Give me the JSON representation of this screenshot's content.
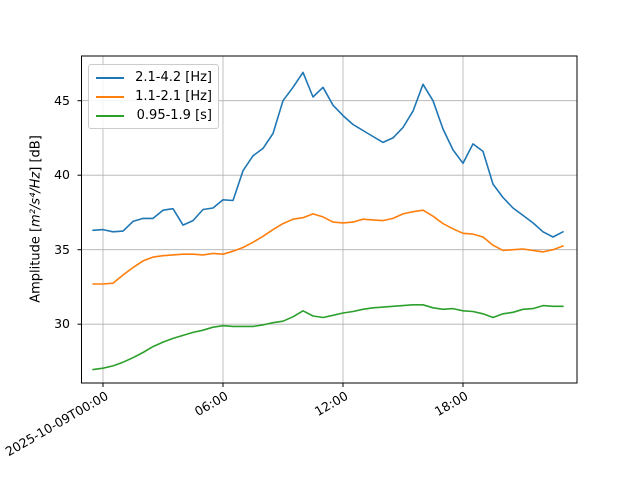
{
  "chart_data": {
    "type": "line",
    "title": "",
    "xlabel": "",
    "ylabel": "Amplitude [m²/s⁴/Hz] [dB]",
    "ylabel_parts": {
      "prefix": "Amplitude [",
      "math": "m²/s⁴/Hz",
      "suffix": "] [dB]"
    },
    "x_units": "hours relative to 2025-10-09T00:00",
    "grid": true,
    "legend_position": "upper left",
    "xlim": [
      -1.1,
      23.7
    ],
    "ylim": [
      26.1,
      48.0
    ],
    "yticks": [
      45,
      40,
      35,
      30
    ],
    "xticks": [
      {
        "t": 0,
        "label": "2025-10-09T00:00"
      },
      {
        "t": 6,
        "label": "06:00"
      },
      {
        "t": 12,
        "label": "12:00"
      },
      {
        "t": 18,
        "label": "18:00"
      }
    ],
    "x": [
      -0.5,
      0,
      0.5,
      1,
      1.5,
      2,
      2.5,
      3,
      3.5,
      4,
      4.5,
      5,
      5.5,
      6,
      6.5,
      7,
      7.5,
      8,
      8.5,
      9,
      9.5,
      10,
      10.5,
      11,
      11.5,
      12,
      12.5,
      13,
      13.5,
      14,
      14.5,
      15,
      15.5,
      16,
      16.5,
      17,
      17.5,
      18,
      18.5,
      19,
      19.5,
      20,
      20.5,
      21,
      21.5,
      22,
      22.5,
      23
    ],
    "series": [
      {
        "name": "2.1-4.2 [Hz]",
        "color": "#1f77b4",
        "values": [
          36.3,
          36.35,
          36.2,
          36.25,
          36.9,
          37.1,
          37.1,
          37.65,
          37.75,
          36.65,
          36.95,
          37.7,
          37.8,
          38.35,
          38.3,
          40.3,
          41.3,
          41.8,
          42.8,
          45.0,
          45.9,
          46.9,
          45.25,
          45.9,
          44.7,
          44.0,
          43.4,
          43.0,
          42.6,
          42.2,
          42.5,
          43.2,
          44.3,
          46.1,
          45.0,
          43.1,
          41.7,
          40.8,
          42.1,
          41.6,
          39.4,
          38.5,
          37.8,
          37.3,
          36.8,
          36.2,
          35.85,
          36.2
        ]
      },
      {
        "name": "1.1-2.1 [Hz]",
        "color": "#ff7f0e",
        "values": [
          32.7,
          32.7,
          32.75,
          33.3,
          33.8,
          34.25,
          34.5,
          34.6,
          34.65,
          34.7,
          34.7,
          34.65,
          34.75,
          34.7,
          34.9,
          35.15,
          35.5,
          35.9,
          36.35,
          36.75,
          37.05,
          37.15,
          37.4,
          37.2,
          36.85,
          36.8,
          36.85,
          37.05,
          37.0,
          36.95,
          37.1,
          37.4,
          37.55,
          37.65,
          37.25,
          36.75,
          36.4,
          36.1,
          36.05,
          35.85,
          35.3,
          34.95,
          35.0,
          35.05,
          34.95,
          34.85,
          35.0,
          35.25
        ]
      },
      {
        "name": "0.95-1.9 [s]",
        "color": "#2ca02c",
        "values": [
          26.95,
          27.05,
          27.2,
          27.45,
          27.75,
          28.1,
          28.5,
          28.8,
          29.05,
          29.25,
          29.45,
          29.6,
          29.8,
          29.9,
          29.85,
          29.85,
          29.85,
          29.95,
          30.1,
          30.2,
          30.5,
          30.9,
          30.55,
          30.45,
          30.6,
          30.75,
          30.85,
          31.0,
          31.1,
          31.15,
          31.2,
          31.25,
          31.3,
          31.3,
          31.1,
          31.0,
          31.05,
          30.9,
          30.85,
          30.7,
          30.45,
          30.7,
          30.8,
          31.0,
          31.05,
          31.25,
          31.2,
          31.2
        ]
      }
    ],
    "colors": {
      "grid": "#b0b0b0",
      "spine": "#000000",
      "background": "#ffffff"
    }
  }
}
